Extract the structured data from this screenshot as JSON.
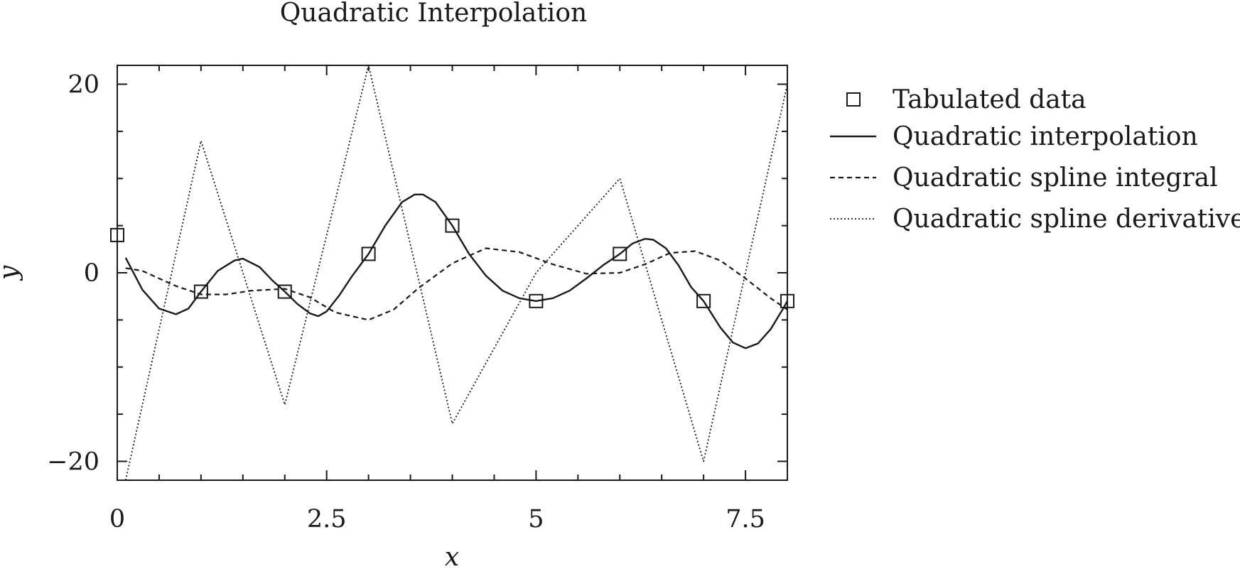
{
  "chart_data": {
    "type": "line",
    "title": "Quadratic Interpolation",
    "xlabel": "x",
    "ylabel": "y",
    "xlim": [
      0,
      8
    ],
    "ylim": [
      -22,
      22
    ],
    "xticks": [
      0,
      2.5,
      5,
      7.5
    ],
    "xtick_labels": [
      "0",
      "2.5",
      "5",
      "7.5"
    ],
    "yticks": [
      -20,
      0,
      20
    ],
    "ytick_labels": [
      "−20",
      "0",
      "20"
    ],
    "grid": false,
    "legend_position": "right-outside-top",
    "series": [
      {
        "name": "Tabulated data",
        "style": "markers-square",
        "x": [
          0,
          1,
          2,
          3,
          4,
          5,
          6,
          7,
          8
        ],
        "y": [
          4,
          -2,
          -2,
          2,
          5,
          -3,
          2,
          -3,
          -3
        ]
      },
      {
        "name": "Quadratic interpolation",
        "style": "solid",
        "x": [
          0.1,
          0.3,
          0.5,
          0.7,
          0.85,
          1.0,
          1.2,
          1.4,
          1.5,
          1.7,
          1.85,
          2.0,
          2.15,
          2.3,
          2.4,
          2.5,
          2.65,
          2.8,
          3.0,
          3.2,
          3.4,
          3.55,
          3.65,
          3.8,
          4.0,
          4.2,
          4.4,
          4.6,
          4.8,
          5.0,
          5.2,
          5.4,
          5.6,
          5.8,
          6.0,
          6.15,
          6.3,
          6.4,
          6.55,
          6.7,
          6.85,
          7.0,
          7.2,
          7.35,
          7.5,
          7.65,
          7.8,
          7.95,
          8.0
        ],
        "y": [
          1.6,
          -1.8,
          -3.8,
          -4.4,
          -3.8,
          -2.0,
          0.2,
          1.3,
          1.5,
          0.6,
          -0.8,
          -2.0,
          -3.3,
          -4.3,
          -4.6,
          -4.1,
          -2.4,
          -0.4,
          2.0,
          5.0,
          7.5,
          8.3,
          8.3,
          7.5,
          5.0,
          2.0,
          -0.3,
          -1.9,
          -2.7,
          -3.0,
          -2.7,
          -1.9,
          -0.6,
          0.8,
          2.0,
          3.1,
          3.6,
          3.5,
          2.6,
          0.8,
          -1.5,
          -3.0,
          -5.8,
          -7.4,
          -8.0,
          -7.5,
          -6.0,
          -3.8,
          -3.0
        ]
      },
      {
        "name": "Quadratic spline integral",
        "style": "dashed",
        "x": [
          0.1,
          0.3,
          0.5,
          0.7,
          1.0,
          1.3,
          1.6,
          2.0,
          2.3,
          2.6,
          3.0,
          3.3,
          3.6,
          4.0,
          4.4,
          4.8,
          5.2,
          5.6,
          6.0,
          6.3,
          6.6,
          6.9,
          7.2,
          7.5,
          7.8,
          8.0
        ],
        "y": [
          0.5,
          0.2,
          -0.6,
          -1.4,
          -2.3,
          -2.3,
          -1.9,
          -1.7,
          -2.6,
          -4.2,
          -5.0,
          -3.9,
          -1.6,
          1.0,
          2.6,
          2.2,
          0.9,
          -0.1,
          0.0,
          0.9,
          2.1,
          2.3,
          1.3,
          -0.6,
          -2.7,
          -3.9
        ]
      },
      {
        "name": "Quadratic spline derivative",
        "style": "dotted",
        "x": [
          0.1,
          1,
          2,
          3,
          4,
          5,
          6,
          7,
          8
        ],
        "y": [
          -22,
          14,
          -14,
          22,
          -16,
          0,
          10,
          -20,
          20
        ]
      }
    ]
  }
}
